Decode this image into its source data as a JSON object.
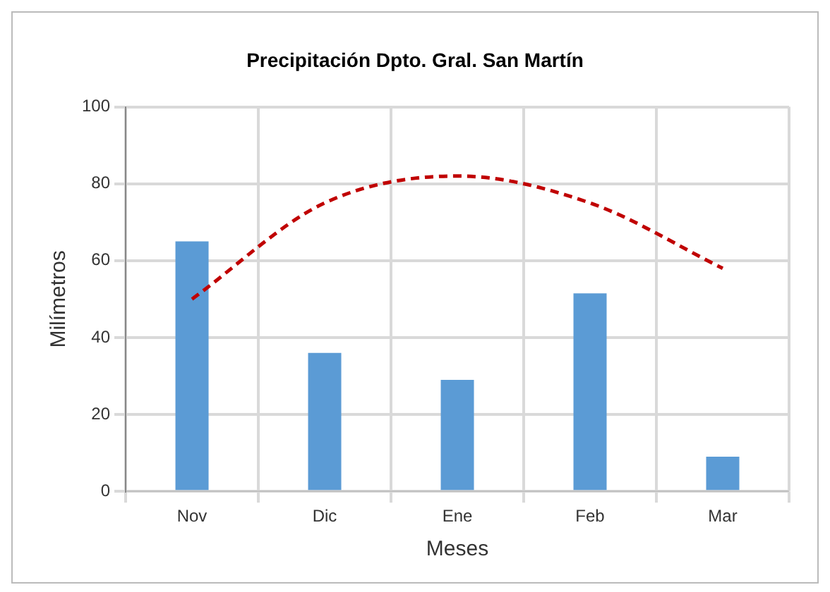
{
  "chart_data": {
    "type": "bar",
    "title": "Precipitación Dpto. Gral. San Martín",
    "xlabel": "Meses",
    "ylabel": "Milímetros",
    "categories": [
      "Nov",
      "Dic",
      "Ene",
      "Feb",
      "Mar"
    ],
    "series": [
      {
        "color": "#5b9bd5",
        "values": [
          65,
          36,
          29,
          51.5,
          9
        ]
      },
      {
        "type": "line",
        "color": "#c00000",
        "values": [
          50,
          75,
          82,
          75,
          58
        ],
        "line_style": "dashed",
        "marker": "none"
      }
    ],
    "ylim": [
      0,
      100
    ],
    "yticks": [
      0,
      20,
      40,
      60,
      80,
      100
    ],
    "grid": true,
    "legend": false
  }
}
